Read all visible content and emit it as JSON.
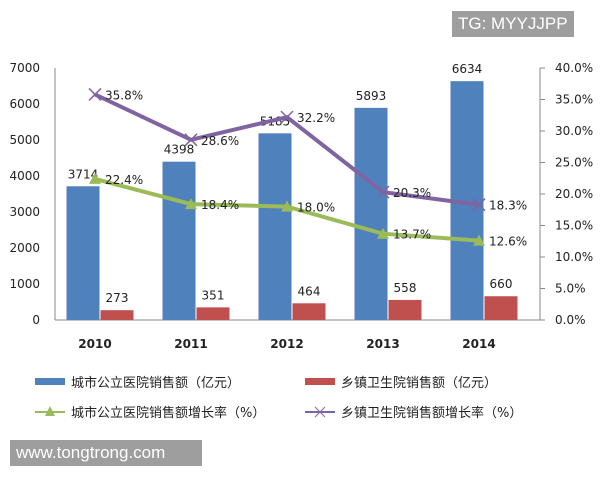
{
  "watermarks": {
    "top": "TG: MYYJJPP",
    "bottom": "www.tongtrong.com"
  },
  "chart_data": {
    "type": "bar",
    "categories": [
      "2010",
      "2011",
      "2012",
      "2013",
      "2014"
    ],
    "y_left": {
      "range": [
        0,
        7000
      ],
      "ticks": [
        "0",
        "1000",
        "2000",
        "3000",
        "4000",
        "5000",
        "6000",
        "7000"
      ]
    },
    "y_right": {
      "range": [
        0,
        40
      ],
      "ticks": [
        "0.0%",
        "5.0%",
        "10.0%",
        "15.0%",
        "20.0%",
        "25.0%",
        "30.0%",
        "35.0%",
        "40.0%"
      ]
    },
    "grid": false,
    "legend_placement": "bottom",
    "series": [
      {
        "name": "城市公立医院销售额（亿元）",
        "kind": "bar",
        "axis": "left",
        "color": "#4f81bd",
        "values": [
          3714,
          4398,
          5185,
          5893,
          6634
        ],
        "labels": [
          "3714",
          "4398",
          "5185",
          "5893",
          "6634"
        ]
      },
      {
        "name": "乡镇卫生院销售额（亿元）",
        "kind": "bar",
        "axis": "left",
        "color": "#c0504d",
        "values": [
          273,
          351,
          464,
          558,
          660
        ],
        "labels": [
          "273",
          "351",
          "464",
          "558",
          "660"
        ]
      },
      {
        "name": "城市公立医院销售额增长率（%）",
        "kind": "line",
        "marker": "triangle",
        "axis": "right",
        "color": "#9bbb59",
        "values": [
          22.4,
          18.4,
          18.0,
          13.7,
          12.6
        ],
        "labels": [
          "22.4%",
          "18.4%",
          "18.0%",
          "13.7%",
          "12.6%"
        ]
      },
      {
        "name": "乡镇卫生院销售额增长率（%）",
        "kind": "line",
        "marker": "x",
        "axis": "right",
        "color": "#8064a2",
        "values": [
          35.8,
          28.6,
          32.2,
          20.3,
          18.3
        ],
        "labels": [
          "35.8%",
          "28.6%",
          "32.2%",
          "20.3%",
          "18.3%"
        ]
      }
    ]
  }
}
